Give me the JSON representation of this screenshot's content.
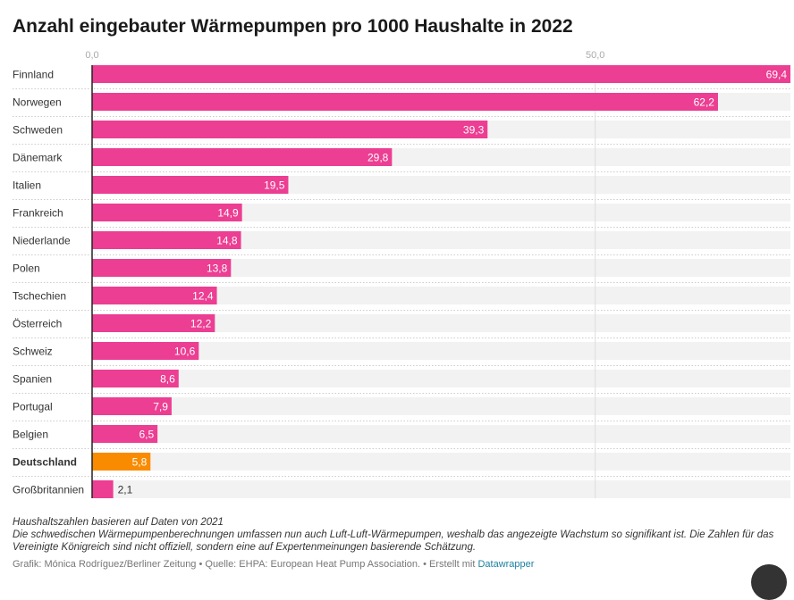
{
  "title": "Anzahl eingebauter Wärmepumpen pro 1000 Haushalte in 2022",
  "chart_data": {
    "type": "bar",
    "orientation": "horizontal",
    "title": "Anzahl eingebauter Wärmepumpen pro 1000 Haushalte in 2022",
    "categories": [
      "Finnland",
      "Norwegen",
      "Schweden",
      "Dänemark",
      "Italien",
      "Frankreich",
      "Niederlande",
      "Polen",
      "Tschechien",
      "Österreich",
      "Schweiz",
      "Spanien",
      "Portugal",
      "Belgien",
      "Deutschland",
      "Großbritannien"
    ],
    "values": [
      69.4,
      62.2,
      39.3,
      29.8,
      19.5,
      14.9,
      14.8,
      13.8,
      12.4,
      12.2,
      10.6,
      8.6,
      7.9,
      6.5,
      5.8,
      2.1
    ],
    "value_labels": [
      "69,4",
      "62,2",
      "39,3",
      "29,8",
      "19,5",
      "14,9",
      "14,8",
      "13,8",
      "12,4",
      "12,2",
      "10,6",
      "8,6",
      "7,9",
      "6,5",
      "5,8",
      "2,1"
    ],
    "highlight": "Deutschland",
    "xlim": [
      0,
      69.4
    ],
    "ticks": [
      0,
      50
    ],
    "tick_labels": [
      "0,0",
      "50,0"
    ],
    "grid": true,
    "colors": {
      "bar": "#ec3e92",
      "highlight": "#f98b00",
      "track": "#f2f2f2"
    }
  },
  "notes": [
    "Haushaltszahlen basieren auf Daten von 2021",
    "Die schwedischen Wärmepumpenberechnungen umfassen nun auch Luft-Luft-Wärmepumpen, weshalb das angezeigte Wachstum so signifikant ist. Die Zahlen für das Vereinigte Königreich sind nicht offiziell, sondern eine auf Expertenmeinungen basierende Schätzung."
  ],
  "byline": {
    "text": "Grafik: Mónica Rodríguez/Berliner Zeitung • Quelle: EHPA: European Heat Pump Association. • Erstellt mit ",
    "link": "Datawrapper"
  }
}
